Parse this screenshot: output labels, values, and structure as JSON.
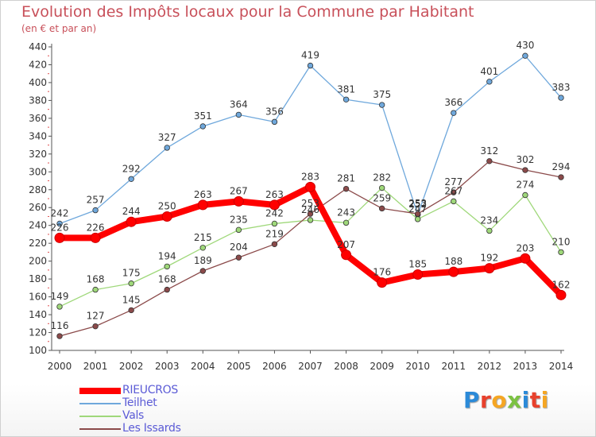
{
  "header": {
    "title": "Evolution des Impôts locaux pour la Commune par Habitant",
    "subtitle": "(en € et par an)"
  },
  "logo": {
    "letters": [
      "P",
      "r",
      "o",
      "x",
      "i",
      "t",
      "i"
    ],
    "colors": [
      "#2b8ad8",
      "#e8412c",
      "#f5a623",
      "#7cc242",
      "#2b8ad8",
      "#e8412c",
      "#f5a623"
    ]
  },
  "chart_data": {
    "type": "line",
    "title": "Evolution des Impôts locaux pour la Commune par Habitant",
    "subtitle": "(en € et par an)",
    "x": [
      "2000",
      "2001",
      "2002",
      "2003",
      "2004",
      "2005",
      "2006",
      "2007",
      "2008",
      "2009",
      "2010",
      "2011",
      "2012",
      "2013",
      "2014"
    ],
    "ylim": [
      100,
      440
    ],
    "yticks": [
      100,
      120,
      140,
      160,
      180,
      200,
      220,
      240,
      260,
      280,
      300,
      320,
      340,
      360,
      380,
      400,
      420,
      440
    ],
    "grid": false,
    "legend": "bottom-left",
    "series": [
      {
        "name": "RIEUCROS",
        "color": "#ff0000",
        "values": [
          226,
          226,
          244,
          250,
          263,
          267,
          263,
          283,
          207,
          176,
          185,
          188,
          192,
          203,
          162
        ]
      },
      {
        "name": "Teilhet",
        "color": "#6fa8dc",
        "values": [
          242,
          257,
          292,
          327,
          351,
          364,
          356,
          419,
          381,
          375,
          252,
          366,
          401,
          430,
          383
        ]
      },
      {
        "name": "Vals",
        "color": "#9fd87a",
        "values": [
          149,
          168,
          175,
          194,
          215,
          235,
          242,
          246,
          243,
          282,
          247,
          267,
          234,
          274,
          210
        ]
      },
      {
        "name": "Les Issards",
        "color": "#8b4a4a",
        "values": [
          116,
          127,
          145,
          168,
          189,
          204,
          219,
          253,
          281,
          259,
          253,
          277,
          312,
          302,
          294
        ]
      }
    ]
  }
}
